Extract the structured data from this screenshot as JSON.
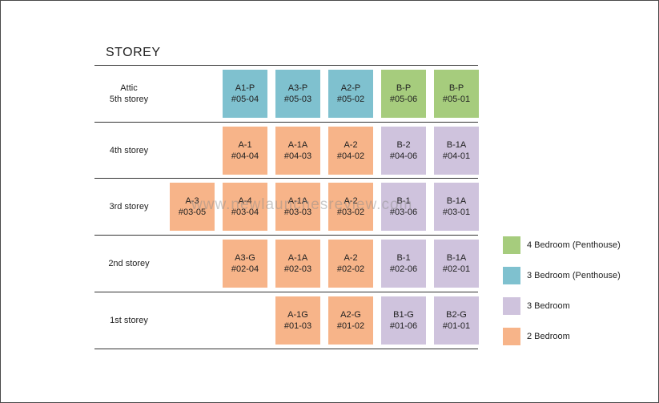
{
  "title": "STOREY",
  "colors": {
    "4br_penthouse": "#a6cc7d",
    "3br_penthouse": "#7fc1cf",
    "3br": "#cfc3dd",
    "2br": "#f7b489"
  },
  "rows": [
    {
      "label_lines": [
        "Attic",
        "5th storey"
      ],
      "units": [
        {
          "col": 1,
          "code": "A1-P",
          "num": "#05-04",
          "type": "3br_penthouse"
        },
        {
          "col": 2,
          "code": "A3-P",
          "num": "#05-03",
          "type": "3br_penthouse"
        },
        {
          "col": 3,
          "code": "A2-P",
          "num": "#05-02",
          "type": "3br_penthouse"
        },
        {
          "col": 4,
          "code": "B-P",
          "num": "#05-06",
          "type": "4br_penthouse"
        },
        {
          "col": 5,
          "code": "B-P",
          "num": "#05-01",
          "type": "4br_penthouse"
        }
      ]
    },
    {
      "label_lines": [
        "4th storey"
      ],
      "units": [
        {
          "col": 1,
          "code": "A-1",
          "num": "#04-04",
          "type": "2br"
        },
        {
          "col": 2,
          "code": "A-1A",
          "num": "#04-03",
          "type": "2br"
        },
        {
          "col": 3,
          "code": "A-2",
          "num": "#04-02",
          "type": "2br"
        },
        {
          "col": 4,
          "code": "B-2",
          "num": "#04-06",
          "type": "3br"
        },
        {
          "col": 5,
          "code": "B-1A",
          "num": "#04-01",
          "type": "3br"
        }
      ]
    },
    {
      "label_lines": [
        "3rd storey"
      ],
      "units": [
        {
          "col": 0,
          "code": "A-3",
          "num": "#03-05",
          "type": "2br"
        },
        {
          "col": 1,
          "code": "A-4",
          "num": "#03-04",
          "type": "2br"
        },
        {
          "col": 2,
          "code": "A-1A",
          "num": "#03-03",
          "type": "2br"
        },
        {
          "col": 3,
          "code": "A-2",
          "num": "#03-02",
          "type": "2br"
        },
        {
          "col": 4,
          "code": "B-1",
          "num": "#03-06",
          "type": "3br"
        },
        {
          "col": 5,
          "code": "B-1A",
          "num": "#03-01",
          "type": "3br"
        }
      ]
    },
    {
      "label_lines": [
        "2nd storey"
      ],
      "units": [
        {
          "col": 1,
          "code": "A3-G",
          "num": "#02-04",
          "type": "2br"
        },
        {
          "col": 2,
          "code": "A-1A",
          "num": "#02-03",
          "type": "2br"
        },
        {
          "col": 3,
          "code": "A-2",
          "num": "#02-02",
          "type": "2br"
        },
        {
          "col": 4,
          "code": "B-1",
          "num": "#02-06",
          "type": "3br"
        },
        {
          "col": 5,
          "code": "B-1A",
          "num": "#02-01",
          "type": "3br"
        }
      ]
    },
    {
      "label_lines": [
        "1st storey"
      ],
      "units": [
        {
          "col": 2,
          "code": "A-1G",
          "num": "#01-03",
          "type": "2br"
        },
        {
          "col": 3,
          "code": "A2-G",
          "num": "#01-02",
          "type": "2br"
        },
        {
          "col": 4,
          "code": "B1-G",
          "num": "#01-06",
          "type": "3br"
        },
        {
          "col": 5,
          "code": "B2-G",
          "num": "#01-01",
          "type": "3br"
        }
      ]
    }
  ],
  "legend": [
    {
      "type": "4br_penthouse",
      "label": "4 Bedroom (Penthouse)"
    },
    {
      "type": "3br_penthouse",
      "label": "3 Bedroom (Penthouse)"
    },
    {
      "type": "3br",
      "label": "3 Bedroom"
    },
    {
      "type": "2br",
      "label": "2 Bedroom"
    }
  ],
  "watermark": "www.newlaunchesreview.com"
}
